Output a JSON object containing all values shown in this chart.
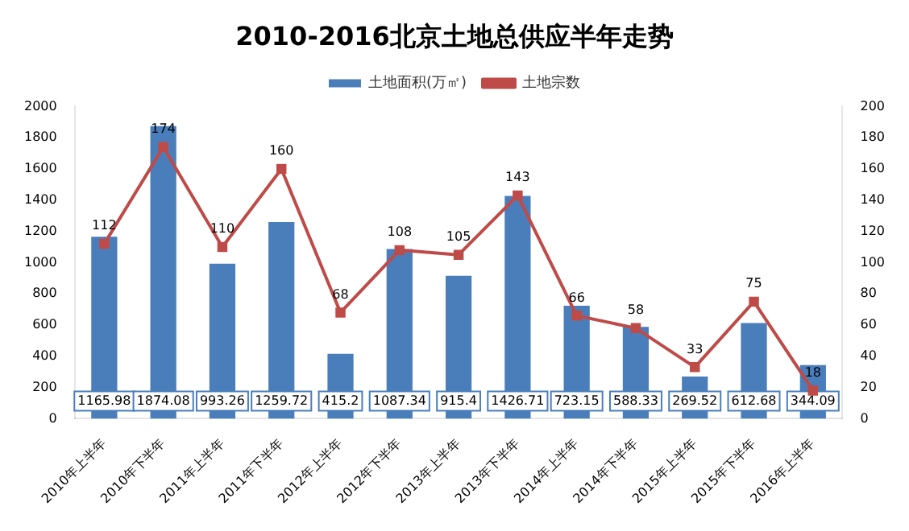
{
  "chart_data": {
    "type": "bar",
    "title": "2010-2016北京土地总供应半年走势",
    "categories": [
      "2010年上半年",
      "2010年下半年",
      "2011年上半年",
      "2011年下半年",
      "2012年上半年",
      "2012年下半年",
      "2013年上半年",
      "2013年下半年",
      "2014年上半年",
      "2014年下半年",
      "2015年上半年",
      "2015年下半年",
      "2016年上半年"
    ],
    "series": [
      {
        "name": "土地面积(万㎡)",
        "color": "#4a7ebb",
        "values": [
          1165.98,
          1874.08,
          993.26,
          1259.72,
          415.2,
          1087.34,
          915.4,
          1426.71,
          723.15,
          588.33,
          269.52,
          612.68,
          344.09
        ]
      },
      {
        "name": "土地宗数",
        "type": "line",
        "axis": "y2",
        "color": "#be4b48",
        "marker": "square",
        "values": [
          112,
          174,
          110,
          160,
          68,
          108,
          105,
          143,
          66,
          58,
          33,
          75,
          18
        ]
      }
    ],
    "ylim": [
      0,
      2000
    ],
    "yticks": [
      0,
      200,
      400,
      600,
      800,
      1000,
      1200,
      1400,
      1600,
      1800,
      2000
    ],
    "y2lim": [
      0,
      200
    ],
    "y2ticks": [
      0,
      20,
      40,
      60,
      80,
      100,
      120,
      140,
      160,
      180,
      200
    ],
    "data_labels": true,
    "legend": "top",
    "grid": false
  }
}
